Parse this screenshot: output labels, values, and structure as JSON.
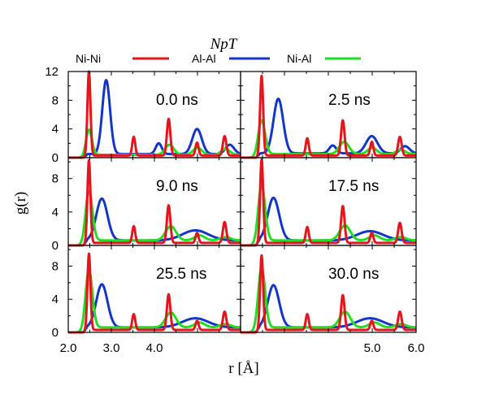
{
  "chart_data": {
    "type": "line",
    "title": "NpT",
    "xlabel": "r [Å]",
    "ylabel": "g(r)",
    "xlim": [
      2.0,
      6.0
    ],
    "xticks": [
      "2.0",
      "3.0",
      "4.0",
      "5.0",
      "6.0"
    ],
    "top_row_yticks": [
      "0",
      "4",
      "8",
      "12"
    ],
    "lower_rows_yticks": [
      "0",
      "4",
      "8"
    ],
    "ylim_top_row": [
      0,
      12
    ],
    "ylim_lower_rows": [
      0,
      10.5
    ],
    "grid": false,
    "legend": {
      "placement": "top",
      "entries": [
        {
          "label": "Ni-Ni",
          "color": "#e8141c"
        },
        {
          "label": "Al-Al",
          "color": "#1436c8"
        },
        {
          "label": "Ni-Al",
          "color": "#22dd22"
        }
      ]
    },
    "panels": [
      {
        "label": "0.0 ns",
        "series": [
          {
            "name": "Ni-Ni",
            "peaks": [
              [
                2.48,
                12.0,
                0.035
              ],
              [
                3.52,
                2.9,
                0.035
              ],
              [
                4.33,
                5.4,
                0.04
              ],
              [
                4.99,
                2.1,
                0.035
              ],
              [
                5.63,
                3.0,
                0.04
              ]
            ],
            "base": 0.3
          },
          {
            "name": "Al-Al",
            "peaks": [
              [
                2.88,
                10.8,
                0.09
              ],
              [
                4.1,
                2.0,
                0.07
              ],
              [
                4.99,
                4.0,
                0.11
              ],
              [
                5.75,
                1.8,
                0.1
              ]
            ],
            "base": 0.5
          },
          {
            "name": "Ni-Al",
            "peaks": [
              [
                2.48,
                3.9,
                0.07
              ],
              [
                4.35,
                1.8,
                0.1
              ],
              [
                5.0,
                1.4,
                0.1
              ],
              [
                5.65,
                1.2,
                0.1
              ]
            ],
            "base": 0.4
          }
        ]
      },
      {
        "label": "2.5 ns",
        "series": [
          {
            "name": "Ni-Ni",
            "peaks": [
              [
                2.48,
                11.4,
                0.035
              ],
              [
                3.52,
                2.7,
                0.035
              ],
              [
                4.33,
                5.2,
                0.04
              ],
              [
                4.99,
                2.2,
                0.035
              ],
              [
                5.63,
                2.9,
                0.04
              ]
            ],
            "base": 0.3
          },
          {
            "name": "Al-Al",
            "peaks": [
              [
                2.86,
                8.2,
                0.11
              ],
              [
                4.1,
                1.7,
                0.08
              ],
              [
                4.99,
                3.0,
                0.13
              ],
              [
                5.75,
                1.6,
                0.1
              ]
            ],
            "base": 0.6
          },
          {
            "name": "Ni-Al",
            "peaks": [
              [
                2.48,
                5.2,
                0.08
              ],
              [
                4.36,
                2.2,
                0.11
              ],
              [
                5.0,
                1.4,
                0.1
              ],
              [
                5.65,
                1.1,
                0.1
              ]
            ],
            "base": 0.5
          }
        ]
      },
      {
        "label": "9.0 ns",
        "series": [
          {
            "name": "Ni-Ni",
            "peaks": [
              [
                2.48,
                10.2,
                0.035
              ],
              [
                3.52,
                2.3,
                0.035
              ],
              [
                4.33,
                4.8,
                0.04
              ],
              [
                4.99,
                1.5,
                0.035
              ],
              [
                5.63,
                2.8,
                0.04
              ]
            ],
            "base": 0.3
          },
          {
            "name": "Al-Al",
            "peaks": [
              [
                2.78,
                5.6,
                0.13
              ],
              [
                4.95,
                1.8,
                0.3
              ]
            ],
            "base": 0.6
          },
          {
            "name": "Ni-Al",
            "peaks": [
              [
                2.48,
                6.5,
                0.08
              ],
              [
                4.38,
                2.3,
                0.12
              ],
              [
                5.05,
                1.2,
                0.12
              ],
              [
                5.65,
                1.0,
                0.12
              ]
            ],
            "base": 0.6
          }
        ]
      },
      {
        "label": "17.5 ns",
        "series": [
          {
            "name": "Ni-Ni",
            "peaks": [
              [
                2.48,
                10.3,
                0.035
              ],
              [
                3.52,
                2.2,
                0.035
              ],
              [
                4.33,
                4.7,
                0.04
              ],
              [
                4.99,
                1.5,
                0.035
              ],
              [
                5.63,
                2.7,
                0.04
              ]
            ],
            "base": 0.3
          },
          {
            "name": "Al-Al",
            "peaks": [
              [
                2.75,
                5.7,
                0.13
              ],
              [
                4.95,
                1.7,
                0.3
              ]
            ],
            "base": 0.6
          },
          {
            "name": "Ni-Al",
            "peaks": [
              [
                2.48,
                7.2,
                0.08
              ],
              [
                4.38,
                2.4,
                0.12
              ],
              [
                5.05,
                1.2,
                0.12
              ],
              [
                5.65,
                1.0,
                0.12
              ]
            ],
            "base": 0.6
          }
        ]
      },
      {
        "label": "25.5 ns",
        "series": [
          {
            "name": "Ni-Ni",
            "peaks": [
              [
                2.48,
                9.5,
                0.035
              ],
              [
                3.52,
                2.2,
                0.035
              ],
              [
                4.33,
                4.6,
                0.04
              ],
              [
                4.99,
                1.4,
                0.035
              ],
              [
                5.63,
                2.5,
                0.04
              ]
            ],
            "base": 0.3
          },
          {
            "name": "Al-Al",
            "peaks": [
              [
                2.78,
                5.8,
                0.13
              ],
              [
                4.95,
                1.7,
                0.3
              ]
            ],
            "base": 0.6
          },
          {
            "name": "Ni-Al",
            "peaks": [
              [
                2.48,
                7.6,
                0.08
              ],
              [
                4.38,
                2.4,
                0.12
              ],
              [
                5.05,
                1.2,
                0.12
              ],
              [
                5.65,
                1.0,
                0.12
              ]
            ],
            "base": 0.6
          }
        ]
      },
      {
        "label": "30.0 ns",
        "series": [
          {
            "name": "Ni-Ni",
            "peaks": [
              [
                2.48,
                9.3,
                0.035
              ],
              [
                3.52,
                2.2,
                0.035
              ],
              [
                4.33,
                4.5,
                0.04
              ],
              [
                4.99,
                1.4,
                0.035
              ],
              [
                5.63,
                2.5,
                0.04
              ]
            ],
            "base": 0.3
          },
          {
            "name": "Al-Al",
            "peaks": [
              [
                2.75,
                5.7,
                0.13
              ],
              [
                4.95,
                1.7,
                0.3
              ]
            ],
            "base": 0.6
          },
          {
            "name": "Ni-Al",
            "peaks": [
              [
                2.48,
                7.8,
                0.08
              ],
              [
                4.38,
                2.5,
                0.12
              ],
              [
                5.05,
                1.2,
                0.12
              ],
              [
                5.65,
                1.0,
                0.12
              ]
            ],
            "base": 0.6
          }
        ]
      }
    ]
  }
}
